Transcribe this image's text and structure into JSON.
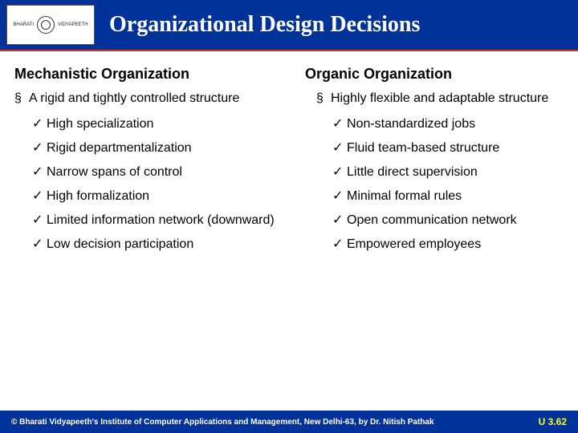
{
  "colors": {
    "header_bg": "#003399",
    "header_underline": "#cc3333",
    "title_color": "#ffffff",
    "body_text": "#000000",
    "footer_bg": "#003399",
    "footer_text": "#ffffff",
    "footer_accent": "#ffff00",
    "background": "#ffffff"
  },
  "typography": {
    "title_font": "Times New Roman",
    "title_size_pt": 28,
    "heading_size_pt": 18,
    "body_size_pt": 16,
    "footer_size_pt": 10
  },
  "logo": {
    "line1": "BHARATI",
    "line2": "VIDYAPEETH"
  },
  "title": "Organizational Design Decisions",
  "left": {
    "heading": "Mechanistic Organization",
    "main": "A rigid and tightly controlled structure",
    "subs": [
      "High specialization",
      "Rigid departmentalization",
      "Narrow spans of control",
      "High formalization",
      "Limited information network (downward)",
      "Low decision participation"
    ]
  },
  "right": {
    "heading": "Organic Organization",
    "main": "Highly flexible and adaptable structure",
    "subs": [
      "Non-standardized jobs",
      "Fluid team-based structure",
      "Little direct supervision",
      "Minimal formal rules",
      "Open communication network",
      "Empowered employees"
    ]
  },
  "bullets": {
    "square": "§",
    "check": "✓"
  },
  "footer": {
    "left": "© Bharati Vidyapeeth's Institute of Computer Applications and Management, New Delhi-63, by Dr. Nitish Pathak",
    "right": "U 3.62"
  }
}
